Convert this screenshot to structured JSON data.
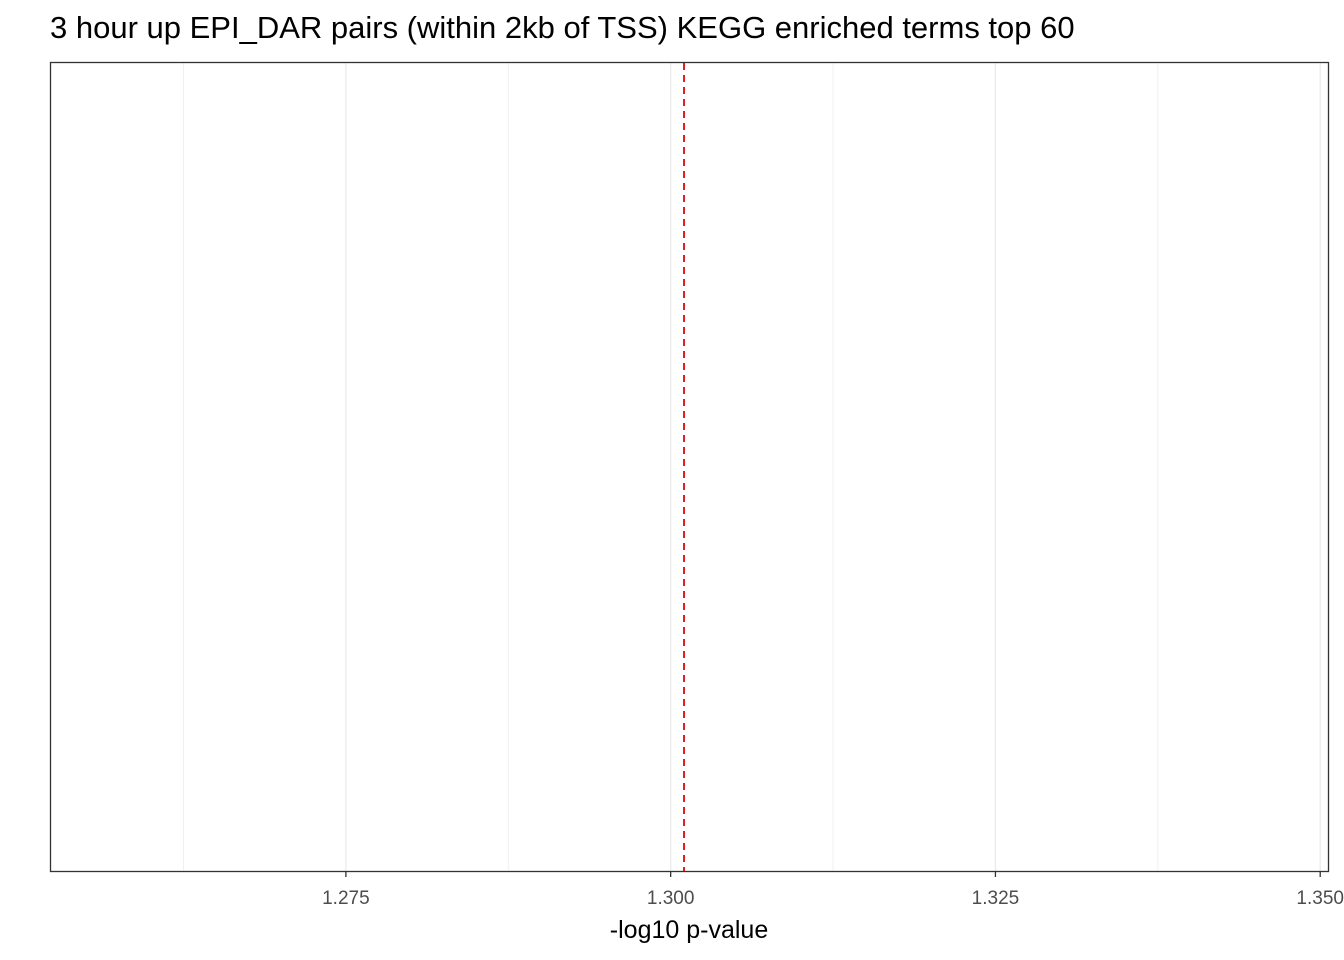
{
  "chart_data": {
    "type": "bar",
    "title": "3 hour up EPI_DAR pairs (within 2kb of TSS) KEGG enriched terms top 60",
    "xlabel": "-log10 p-value",
    "ylabel": "",
    "categories": [],
    "values": [],
    "orientation": "horizontal",
    "xlim": [
      1.2523,
      1.3506
    ],
    "x_ticks": [
      1.275,
      1.3,
      1.325,
      1.35
    ],
    "x_tick_labels": [
      "1.275",
      "1.300",
      "1.325",
      "1.350"
    ],
    "x_minor_gridlines": [
      1.2625,
      1.2875,
      1.3125,
      1.3375
    ],
    "reference_line": {
      "x": 1.30103,
      "color": "#e41a1c",
      "style": "dashed"
    },
    "grid": true,
    "legend": "none"
  }
}
